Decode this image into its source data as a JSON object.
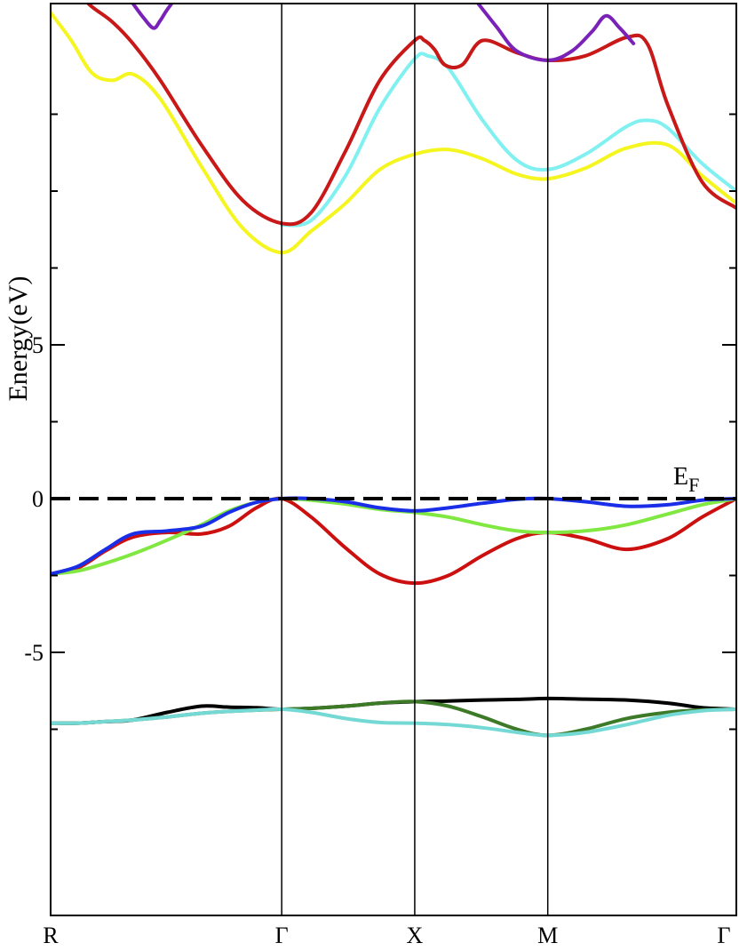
{
  "chart_data": {
    "type": "line",
    "ylabel": "Energy(eV)",
    "ylim": [
      -8.3,
      15.8
    ],
    "yticks_major": [
      -5,
      0,
      5
    ],
    "yticks_minor": [
      -7.5,
      -2.5,
      2.5,
      7.5,
      10,
      12.5
    ],
    "yticklabels": {
      "-5": "-5",
      "0": "0",
      "5": "5"
    },
    "xlim": [
      0,
      1
    ],
    "kpoints": [
      {
        "label": "R",
        "x": 0.0
      },
      {
        "label": "Γ",
        "x": 0.337
      },
      {
        "label": "X",
        "x": 0.531
      },
      {
        "label": "M",
        "x": 0.725
      },
      {
        "label": "Γ",
        "x": 1.0
      }
    ],
    "fermi_level": {
      "value": 0,
      "label_main": "E",
      "label_sub": "F",
      "style": "dashed"
    },
    "grid": false,
    "series": [
      {
        "color": "#000000",
        "x": [
          0.0,
          0.04,
          0.08,
          0.12,
          0.17,
          0.22,
          0.26,
          0.3,
          0.337,
          0.38,
          0.43,
          0.48,
          0.531,
          0.58,
          0.63,
          0.68,
          0.725,
          0.78,
          0.84,
          0.9,
          0.95,
          1.0
        ],
        "y": [
          -7.3,
          -7.3,
          -7.25,
          -7.2,
          -6.95,
          -6.75,
          -6.78,
          -6.8,
          -6.85,
          -6.82,
          -6.75,
          -6.65,
          -6.6,
          -6.58,
          -6.55,
          -6.53,
          -6.5,
          -6.52,
          -6.55,
          -6.65,
          -6.8,
          -6.85
        ]
      },
      {
        "color": "#3d7a28",
        "x": [
          0.0,
          0.04,
          0.08,
          0.12,
          0.17,
          0.22,
          0.26,
          0.3,
          0.337,
          0.38,
          0.43,
          0.48,
          0.531,
          0.58,
          0.63,
          0.68,
          0.725,
          0.78,
          0.84,
          0.9,
          0.95,
          1.0
        ],
        "y": [
          -7.3,
          -7.3,
          -7.25,
          -7.2,
          -7.1,
          -6.98,
          -6.92,
          -6.88,
          -6.85,
          -6.82,
          -6.75,
          -6.65,
          -6.6,
          -6.75,
          -7.1,
          -7.5,
          -7.7,
          -7.5,
          -7.15,
          -6.95,
          -6.87,
          -6.85
        ]
      },
      {
        "color": "#74d9d5",
        "x": [
          0.0,
          0.04,
          0.08,
          0.12,
          0.17,
          0.22,
          0.26,
          0.3,
          0.337,
          0.38,
          0.43,
          0.48,
          0.531,
          0.58,
          0.63,
          0.68,
          0.725,
          0.78,
          0.84,
          0.9,
          0.95,
          1.0
        ],
        "y": [
          -7.3,
          -7.3,
          -7.25,
          -7.2,
          -7.1,
          -6.98,
          -6.92,
          -6.88,
          -6.85,
          -6.95,
          -7.15,
          -7.28,
          -7.3,
          -7.35,
          -7.45,
          -7.6,
          -7.7,
          -7.6,
          -7.35,
          -7.05,
          -6.9,
          -6.85
        ]
      },
      {
        "color": "#cc1010",
        "x": [
          0.0,
          0.04,
          0.08,
          0.12,
          0.17,
          0.22,
          0.26,
          0.3,
          0.337,
          0.38,
          0.43,
          0.48,
          0.531,
          0.58,
          0.63,
          0.68,
          0.725,
          0.78,
          0.84,
          0.9,
          0.95,
          1.0
        ],
        "y": [
          -2.45,
          -2.25,
          -1.7,
          -1.25,
          -1.1,
          -1.15,
          -0.9,
          -0.3,
          0.0,
          -0.6,
          -1.6,
          -2.45,
          -2.75,
          -2.5,
          -1.85,
          -1.3,
          -1.1,
          -1.3,
          -1.65,
          -1.3,
          -0.6,
          0.0
        ]
      },
      {
        "color": "#80e840",
        "x": [
          0.0,
          0.04,
          0.08,
          0.12,
          0.17,
          0.22,
          0.26,
          0.3,
          0.337,
          0.38,
          0.43,
          0.48,
          0.531,
          0.58,
          0.63,
          0.68,
          0.725,
          0.78,
          0.84,
          0.9,
          0.95,
          1.0
        ],
        "y": [
          -2.45,
          -2.35,
          -2.1,
          -1.8,
          -1.35,
          -0.85,
          -0.4,
          -0.12,
          0.0,
          -0.05,
          -0.18,
          -0.35,
          -0.45,
          -0.6,
          -0.85,
          -1.05,
          -1.1,
          -1.05,
          -0.85,
          -0.5,
          -0.2,
          0.0
        ]
      },
      {
        "color": "#1a2ee8",
        "x": [
          0.0,
          0.04,
          0.08,
          0.12,
          0.17,
          0.22,
          0.26,
          0.3,
          0.337,
          0.38,
          0.43,
          0.48,
          0.531,
          0.58,
          0.63,
          0.68,
          0.725,
          0.78,
          0.84,
          0.9,
          0.95,
          1.0
        ],
        "y": [
          -2.45,
          -2.2,
          -1.65,
          -1.15,
          -1.05,
          -0.9,
          -0.45,
          -0.12,
          0.0,
          0.0,
          -0.1,
          -0.3,
          -0.4,
          -0.3,
          -0.15,
          -0.02,
          0.0,
          -0.1,
          -0.25,
          -0.2,
          -0.05,
          0.0
        ]
      },
      {
        "color": "#f5f520",
        "x": [
          0.0,
          0.03,
          0.06,
          0.09,
          0.12,
          0.16,
          0.22,
          0.28,
          0.337,
          0.38,
          0.43,
          0.48,
          0.531,
          0.58,
          0.63,
          0.68,
          0.725,
          0.78,
          0.84,
          0.9,
          0.95,
          1.0
        ],
        "y": [
          15.8,
          14.9,
          13.85,
          13.6,
          13.8,
          13.0,
          10.8,
          8.8,
          8.0,
          8.7,
          9.6,
          10.7,
          11.2,
          11.35,
          11.05,
          10.55,
          10.4,
          10.75,
          11.4,
          11.5,
          10.5,
          9.6
        ]
      },
      {
        "color": "#80f0f0",
        "x": [
          0.337,
          0.38,
          0.43,
          0.48,
          0.531,
          0.55,
          0.58,
          0.63,
          0.68,
          0.725,
          0.78,
          0.84,
          0.87,
          0.9,
          0.95,
          1.0
        ],
        "y": [
          8.9,
          9.05,
          10.5,
          12.7,
          14.3,
          14.4,
          14.0,
          12.3,
          11.0,
          10.7,
          11.2,
          12.1,
          12.3,
          12.05,
          10.9,
          10.0
        ]
      },
      {
        "color": "#c81818",
        "x": [
          0.0,
          0.03,
          0.06,
          0.09,
          0.12,
          0.16,
          0.22,
          0.28,
          0.337,
          0.38,
          0.43,
          0.48,
          0.531,
          0.545,
          0.56,
          0.575,
          0.6,
          0.63,
          0.68,
          0.725,
          0.78,
          0.84,
          0.87,
          0.9,
          0.95,
          1.0
        ],
        "y": [
          17.0,
          16.6,
          16.0,
          15.5,
          14.8,
          13.6,
          11.5,
          9.7,
          8.95,
          9.3,
          11.3,
          13.6,
          14.9,
          14.9,
          14.6,
          14.1,
          14.1,
          14.9,
          14.5,
          14.25,
          14.4,
          15.0,
          14.8,
          12.8,
          10.3,
          9.45
        ]
      },
      {
        "color": "#7a22b8",
        "x": [
          0.12,
          0.135,
          0.15,
          0.16,
          0.17,
          0.19
        ],
        "y": [
          16.1,
          15.65,
          15.3,
          15.55,
          15.9,
          16.5
        ]
      },
      {
        "color": "#7a22b8",
        "x": [
          0.62,
          0.65,
          0.68,
          0.725,
          0.76,
          0.79,
          0.81,
          0.83,
          0.85
        ],
        "y": [
          16.2,
          15.35,
          14.55,
          14.25,
          14.55,
          15.2,
          15.7,
          15.3,
          14.8
        ]
      }
    ]
  }
}
